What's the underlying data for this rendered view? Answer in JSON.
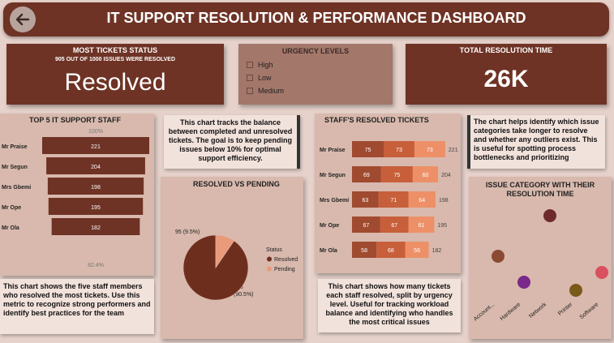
{
  "header": {
    "title": "IT SUPPORT RESOLUTION & PERFORMANCE DASHBOARD"
  },
  "status_card": {
    "title": "MOST TICKETS STATUS",
    "subtitle": "905 OUT OF 1000 ISSUES WERE RESOLVED",
    "value": "Resolved"
  },
  "urgency_card": {
    "title": "URGENCY LEVELS",
    "items": [
      "High",
      "Low",
      "Medium"
    ]
  },
  "resolution_card": {
    "title": "TOTAL RESOLUTION TIME",
    "value": "26K"
  },
  "colors": {
    "brown": "#6e3325",
    "resolved": "#6e2e1e",
    "pending": "#e89a7a",
    "high": "#a04a30",
    "low": "#c75f3a",
    "medium": "#ed9068"
  },
  "top_staff": {
    "title": "TOP 5 IT SUPPORT STAFF",
    "top_label": "100%",
    "bottom_label": "82.4%",
    "note": "This chart shows the five staff members who resolved the most tickets. Use this metric to recognize strong performers and identify best practices for the team"
  },
  "resolved_pending": {
    "title": "RESOLVED VS PENDING",
    "note": "This chart tracks the balance between completed and unresolved tickets. The goal is to keep pending issues below 10% for optimal support efficiency.",
    "legend_title": "Status",
    "pending_label": "95 (9.5%)",
    "resolved_label_1": "905",
    "resolved_label_2": "(90.5%)"
  },
  "staff_resolved": {
    "title": "STAFF'S RESOLVED TICKETS",
    "note": "This chart shows how many tickets each staff resolved, split by urgency level. Useful for tracking workload balance and identifying who handles the most critical issues"
  },
  "issue_category": {
    "title": "ISSUE CATEGORY WITH THEIR RESOLUTION TIME",
    "note": "The chart helps identify which issue categories take longer to resolve and whether any outliers exist. This is useful for spotting process bottlenecks and prioritizing"
  },
  "chart_data": [
    {
      "type": "bar",
      "title": "TOP 5 IT SUPPORT STAFF",
      "categories": [
        "Mr Praise",
        "Mr Segun",
        "Mrs Gbemi",
        "Mr Ope",
        "Mr Ola"
      ],
      "values": [
        221,
        204,
        198,
        195,
        182
      ]
    },
    {
      "type": "pie",
      "title": "RESOLVED VS PENDING",
      "categories": [
        "Resolved",
        "Pending"
      ],
      "values": [
        905,
        95
      ],
      "percents": [
        90.5,
        9.5
      ],
      "legend": "right"
    },
    {
      "type": "bar",
      "title": "STAFF'S RESOLVED TICKETS",
      "categories": [
        "Mr Praise",
        "Mr Segun",
        "Mrs Gbemi",
        "Mr Ope",
        "Mr Ola"
      ],
      "series": [
        {
          "name": "High",
          "values": [
            75,
            69,
            63,
            67,
            58
          ]
        },
        {
          "name": "Low",
          "values": [
            73,
            75,
            71,
            67,
            68
          ]
        },
        {
          "name": "Medium",
          "values": [
            73,
            60,
            64,
            61,
            56
          ]
        }
      ],
      "totals": [
        221,
        204,
        198,
        195,
        182
      ]
    },
    {
      "type": "scatter",
      "title": "ISSUE CATEGORY WITH THEIR RESOLUTION TIME",
      "categories": [
        "Account...",
        "Hardware",
        "Network",
        "Printer",
        "Software"
      ],
      "colors": [
        "#8b4a33",
        "#7a2a8a",
        "#6e2a2a",
        "#7a5a1a",
        "#d9505e"
      ]
    }
  ]
}
